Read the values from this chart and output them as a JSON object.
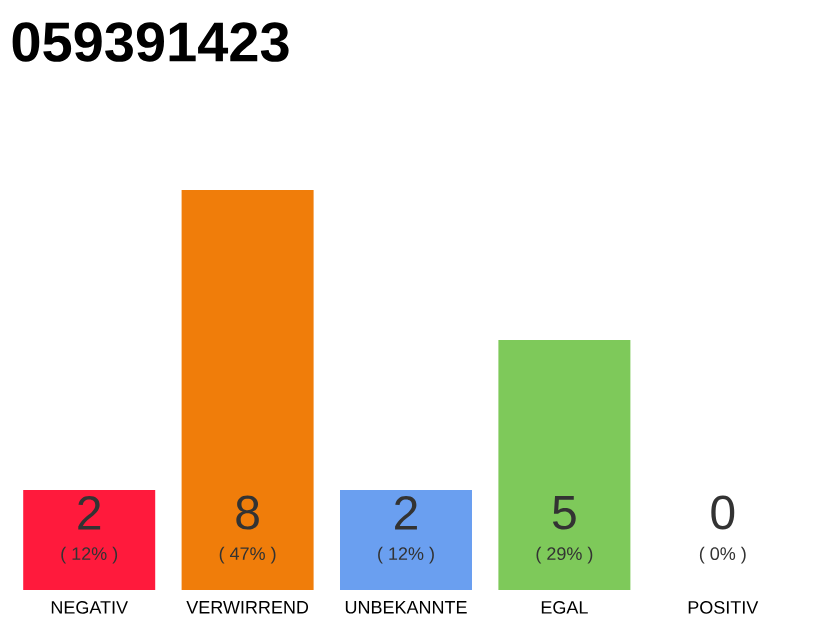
{
  "chart_data": {
    "type": "bar",
    "title": "059391423",
    "categories": [
      "NEGATIV",
      "VERWIRREND",
      "UNBEKANNTE",
      "EGAL",
      "POSITIV"
    ],
    "values": [
      2,
      8,
      2,
      5,
      0
    ],
    "colors": [
      "#ff1a3c",
      "#f07d0a",
      "#6a9ff0",
      "#7ec95a",
      "#cccccc"
    ],
    "value_labels": [
      "2",
      "8",
      "2",
      "5",
      "0"
    ],
    "annotations": [
      {
        "text": "( 12% )",
        "x": "NEGATIV",
        "y": 0
      },
      {
        "text": "( 47% )",
        "x": "VERWIRREND",
        "y": 0
      },
      {
        "text": "( 12% )",
        "x": "UNBEKANNTE",
        "y": 0
      },
      {
        "text": "( 29% )",
        "x": "EGAL",
        "y": 0
      },
      {
        "text": "( 0% )",
        "x": "POSITIV",
        "y": 0
      }
    ]
  }
}
